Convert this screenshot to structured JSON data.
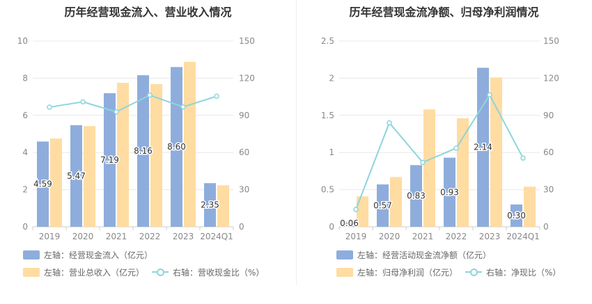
{
  "colors": {
    "bar1": "#8eaddc",
    "bar2": "#ffdca1",
    "line": "#8dd5dc",
    "grid": "#e8e8e8",
    "axis_text": "#888888"
  },
  "chart_data": [
    {
      "type": "bar",
      "title": "历年经营现金流入、营业收入情况",
      "categories": [
        "2019",
        "2020",
        "2021",
        "2022",
        "2023",
        "2024Q1"
      ],
      "left_axis": {
        "ylim": [
          0,
          10
        ],
        "ticks": [
          "0",
          "2",
          "4",
          "6",
          "8",
          "10"
        ]
      },
      "right_axis": {
        "ylim": [
          0,
          150
        ],
        "ticks": [
          "0",
          "30",
          "60",
          "90",
          "120",
          "150"
        ]
      },
      "series": [
        {
          "name": "左轴：经营现金流入（亿元）",
          "type": "bar",
          "axis": "left",
          "values": [
            4.59,
            5.47,
            7.19,
            8.16,
            8.6,
            2.35
          ],
          "labels": [
            "4.59",
            "5.47",
            "7.19",
            "8.16",
            "8.60",
            "2.35"
          ]
        },
        {
          "name": "左轴：营业总收入（亿元）",
          "type": "bar",
          "axis": "left",
          "values": [
            4.75,
            5.42,
            7.75,
            7.68,
            8.88,
            2.23
          ]
        },
        {
          "name": "右轴：营收现金比（%）",
          "type": "line",
          "axis": "right",
          "values": [
            96.6,
            100.9,
            92.8,
            106.3,
            96.8,
            105.4
          ]
        }
      ],
      "grid": true,
      "legend": "bottom"
    },
    {
      "type": "bar",
      "title": "历年经营现金流净额、归母净利润情况",
      "categories": [
        "2019",
        "2020",
        "2021",
        "2022",
        "2023",
        "2024Q1"
      ],
      "left_axis": {
        "ylim": [
          0,
          2.5
        ],
        "ticks": [
          "0",
          "0.5",
          "1",
          "1.5",
          "2",
          "2.5"
        ]
      },
      "right_axis": {
        "ylim": [
          0,
          150
        ],
        "ticks": [
          "0",
          "30",
          "60",
          "90",
          "120",
          "150"
        ]
      },
      "series": [
        {
          "name": "左轴：经营活动现金流净额（亿元）",
          "type": "bar",
          "axis": "left",
          "values": [
            0.06,
            0.57,
            0.83,
            0.93,
            2.14,
            0.3
          ],
          "labels": [
            "0.06",
            "0.57",
            "0.83",
            "0.93",
            "2.14",
            "0.30"
          ]
        },
        {
          "name": "左轴：归母净利润（亿元）",
          "type": "bar",
          "axis": "left",
          "values": [
            0.41,
            0.67,
            1.58,
            1.46,
            2.01,
            0.54
          ]
        },
        {
          "name": "右轴：净现比（%）",
          "type": "line",
          "axis": "right",
          "values": [
            14,
            84,
            52,
            63.5,
            106.5,
            55.5
          ]
        }
      ],
      "grid": true,
      "legend": "bottom"
    }
  ]
}
